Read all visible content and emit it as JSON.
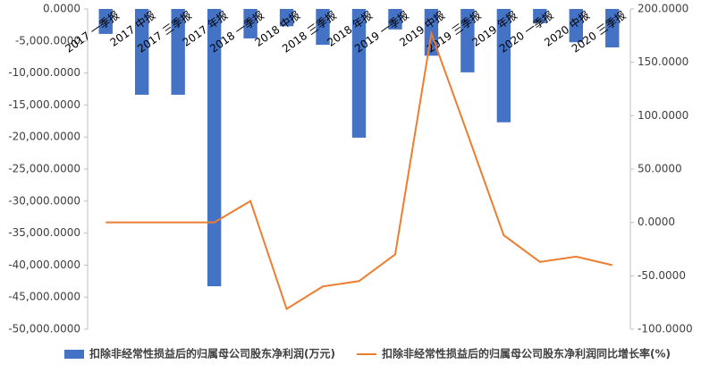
{
  "chart_data": {
    "type": "bar-line",
    "categories": [
      "2017 一季报",
      "2017 中报",
      "2017 三季报",
      "2017 年报",
      "2018 一季报",
      "2018 中报",
      "2018 三季报",
      "2018 年报",
      "2019 一季报",
      "2019 中报",
      "2019 三季报",
      "2019 年报",
      "2020 一季报",
      "2020 中报",
      "2020 三季报"
    ],
    "series": [
      {
        "name": "扣除非经常性损益后的归属母公司股东净利润(万元)",
        "type": "bar",
        "color": "#4472c4",
        "values": [
          -3900,
          -13400,
          -13400,
          -43300,
          -4600,
          -2700,
          -5600,
          -20100,
          -3200,
          -7300,
          -9900,
          -17700,
          -2200,
          -5200,
          -6000
        ]
      },
      {
        "name": "扣除非经常性损益后的归属母公司股东净利润同比增长率(%)",
        "type": "line",
        "axis": "y2",
        "color": "#ed7d31",
        "values": [
          0,
          0,
          0,
          0,
          20,
          -81,
          -60,
          -55,
          -30,
          177,
          83,
          -12,
          -37,
          -32,
          -40
        ]
      }
    ],
    "ylim": [
      -50000,
      0
    ],
    "yticks": [
      {
        "value": 0,
        "label": "0.0000"
      },
      {
        "value": -5000,
        "label": "-5,000.0000"
      },
      {
        "value": -10000,
        "label": "-10,000.0000"
      },
      {
        "value": -15000,
        "label": "-15,000.0000"
      },
      {
        "value": -20000,
        "label": "-20,000.0000"
      },
      {
        "value": -25000,
        "label": "-25,000.0000"
      },
      {
        "value": -30000,
        "label": "-30,000.0000"
      },
      {
        "value": -35000,
        "label": "-35,000.0000"
      },
      {
        "value": -40000,
        "label": "-40,000.0000"
      },
      {
        "value": -45000,
        "label": "-45,000.0000"
      },
      {
        "value": -50000,
        "label": "-50,000.0000"
      }
    ],
    "y2lim": [
      -100,
      200
    ],
    "y2ticks": [
      {
        "value": 200,
        "label": "200.0000"
      },
      {
        "value": 150,
        "label": "150.0000"
      },
      {
        "value": 100,
        "label": "100.0000"
      },
      {
        "value": 50,
        "label": "50.0000"
      },
      {
        "value": 0,
        "label": "0.0000"
      },
      {
        "value": -50,
        "label": "-50.0000"
      },
      {
        "value": -100,
        "label": "-100.0000"
      }
    ],
    "legend": "bottom"
  }
}
